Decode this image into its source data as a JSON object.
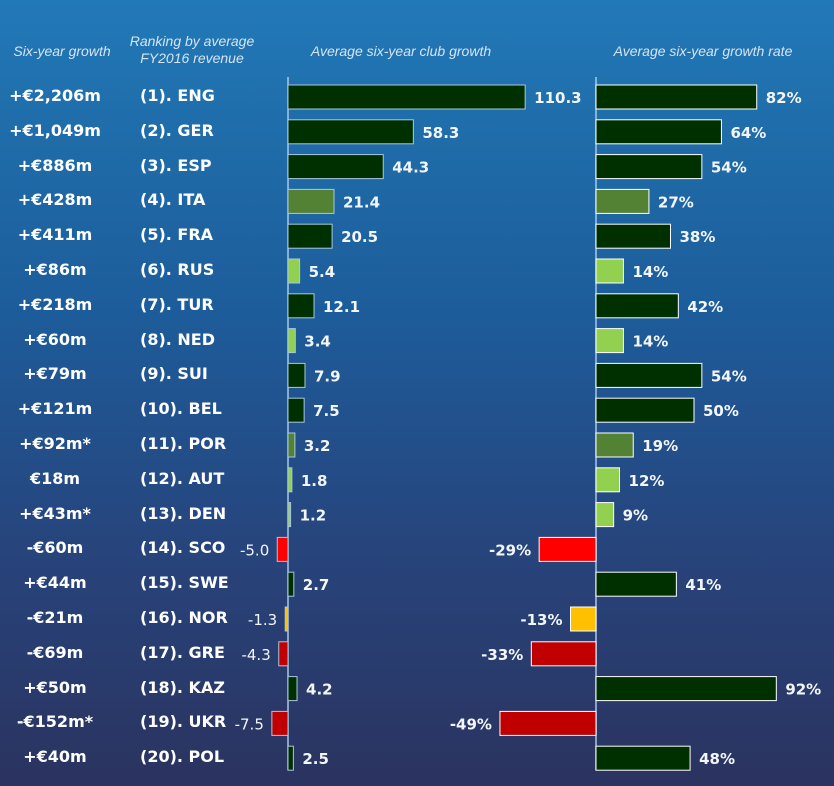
{
  "headers": {
    "growth": "Six-year growth",
    "ranking_line1": "Ranking by average",
    "ranking_line2": "FY2016 revenue",
    "club_growth": "Average six-year club growth",
    "growth_rate": "Average six-year growth rate"
  },
  "colors": {
    "dark_green": "#003000",
    "mid_green": "#548235",
    "light_green": "#92d050",
    "red": "#ff0000",
    "dark_red": "#c00000",
    "amber": "#ffc000"
  },
  "rows": [
    {
      "growth": "+€2,206m",
      "rank": "(1). ENG"
    },
    {
      "growth": "+€1,049m",
      "rank": "(2). GER"
    },
    {
      "growth": "+€886m",
      "rank": "(3). ESP"
    },
    {
      "growth": "+€428m",
      "rank": "(4). ITA"
    },
    {
      "growth": "+€411m",
      "rank": "(5). FRA"
    },
    {
      "growth": "+€86m",
      "rank": "(6). RUS"
    },
    {
      "growth": "+€218m",
      "rank": "(7). TUR"
    },
    {
      "growth": "+€60m",
      "rank": "(8). NED"
    },
    {
      "growth": "+€79m",
      "rank": "(9). SUI"
    },
    {
      "growth": "+€121m",
      "rank": "(10). BEL"
    },
    {
      "growth": "+€92m*",
      "rank": "(11). POR"
    },
    {
      "growth": "€18m",
      "rank": "(12). AUT"
    },
    {
      "growth": "+€43m*",
      "rank": "(13). DEN"
    },
    {
      "growth": "-€60m",
      "rank": "(14). SCO"
    },
    {
      "growth": "+€44m",
      "rank": "(15). SWE"
    },
    {
      "growth": "-€21m",
      "rank": "(16). NOR"
    },
    {
      "growth": "-€69m",
      "rank": "(17). GRE"
    },
    {
      "growth": "+€50m",
      "rank": "(18). KAZ"
    },
    {
      "growth": "-€152m*",
      "rank": "(19). UKR"
    },
    {
      "growth": "+€40m",
      "rank": "(20). POL"
    }
  ],
  "chart_data": [
    {
      "type": "bar",
      "orientation": "horizontal",
      "title": "Average six-year club growth",
      "categories": [
        "ENG",
        "GER",
        "ESP",
        "ITA",
        "FRA",
        "RUS",
        "TUR",
        "NED",
        "SUI",
        "BEL",
        "POR",
        "AUT",
        "DEN",
        "SCO",
        "SWE",
        "NOR",
        "GRE",
        "KAZ",
        "UKR",
        "POL"
      ],
      "values": [
        110.3,
        58.3,
        44.3,
        21.4,
        20.5,
        5.4,
        12.1,
        3.4,
        7.9,
        7.5,
        3.2,
        1.8,
        1.2,
        -5.0,
        2.7,
        -1.3,
        -4.3,
        4.2,
        -7.5,
        2.5
      ],
      "labels": [
        "110.3",
        "58.3",
        "44.3",
        "21.4",
        "20.5",
        "5.4",
        "12.1",
        "3.4",
        "7.9",
        "7.5",
        "3.2",
        "1.8",
        "1.2",
        "-5.0",
        "2.7",
        "-1.3",
        "-4.3",
        "4.2",
        "-7.5",
        "2.5"
      ],
      "bar_colors": [
        "dark_green",
        "dark_green",
        "dark_green",
        "mid_green",
        "dark_green",
        "light_green",
        "dark_green",
        "light_green",
        "dark_green",
        "dark_green",
        "mid_green",
        "light_green",
        "light_green",
        "red",
        "dark_green",
        "amber",
        "dark_red",
        "dark_green",
        "dark_red",
        "dark_green"
      ],
      "grid": false
    },
    {
      "type": "bar",
      "orientation": "horizontal",
      "title": "Average six-year growth rate",
      "categories": [
        "ENG",
        "GER",
        "ESP",
        "ITA",
        "FRA",
        "RUS",
        "TUR",
        "NED",
        "SUI",
        "BEL",
        "POR",
        "AUT",
        "DEN",
        "SCO",
        "SWE",
        "NOR",
        "GRE",
        "KAZ",
        "UKR",
        "POL"
      ],
      "values": [
        82,
        64,
        54,
        27,
        38,
        14,
        42,
        14,
        54,
        50,
        19,
        12,
        9,
        -29,
        41,
        -13,
        -33,
        92,
        -49,
        48
      ],
      "labels": [
        "82%",
        "64%",
        "54%",
        "27%",
        "38%",
        "14%",
        "42%",
        "14%",
        "54%",
        "50%",
        "19%",
        "12%",
        "9%",
        "-29%",
        "41%",
        "-13%",
        "-33%",
        "92%",
        "-49%",
        "48%"
      ],
      "bar_colors": [
        "dark_green",
        "dark_green",
        "dark_green",
        "mid_green",
        "dark_green",
        "light_green",
        "dark_green",
        "light_green",
        "dark_green",
        "dark_green",
        "mid_green",
        "light_green",
        "light_green",
        "red",
        "dark_green",
        "amber",
        "dark_red",
        "dark_green",
        "dark_red",
        "dark_green"
      ],
      "grid": false
    }
  ]
}
